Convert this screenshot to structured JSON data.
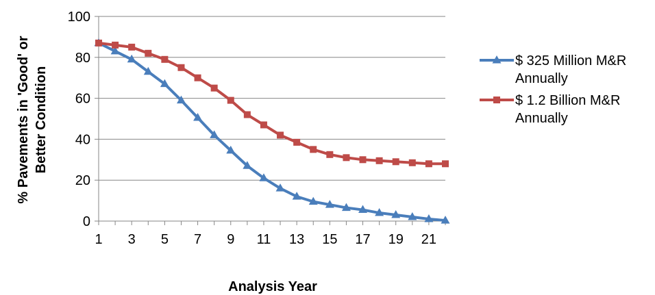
{
  "chart_data": {
    "type": "line",
    "title": "",
    "xlabel": "Analysis Year",
    "ylabel_lines": [
      "% Pavements in 'Good' or",
      "Better Condition"
    ],
    "x": [
      1,
      2,
      3,
      4,
      5,
      6,
      7,
      8,
      9,
      10,
      11,
      12,
      13,
      14,
      15,
      16,
      17,
      18,
      19,
      20,
      21,
      22
    ],
    "x_tick_labels": [
      "1",
      "3",
      "5",
      "7",
      "9",
      "11",
      "13",
      "15",
      "17",
      "19",
      "21"
    ],
    "y_tick_labels": [
      "0",
      "20",
      "40",
      "60",
      "80",
      "100"
    ],
    "ylim": [
      0,
      100
    ],
    "grid": "horizontal",
    "legend_position": "right",
    "series": [
      {
        "name": "$ 325 Million M&R Annually",
        "name_lines": [
          "$ 325 Million M&R",
          "Annually"
        ],
        "color": "#4a7ebb",
        "marker": "triangle",
        "values": [
          87,
          83,
          79,
          73,
          67,
          59,
          50.5,
          42,
          34.5,
          27,
          21,
          16,
          12,
          9.5,
          8,
          6.5,
          5.5,
          4,
          3,
          2,
          1,
          0.3
        ]
      },
      {
        "name": "$ 1.2 Billion M&R Annually",
        "name_lines": [
          "$ 1.2 Billion M&R",
          "Annually"
        ],
        "color": "#be4b48",
        "marker": "square",
        "values": [
          87,
          86,
          85,
          82,
          79,
          75,
          70,
          65,
          59,
          52,
          47,
          42,
          38.5,
          35,
          32.5,
          31,
          30,
          29.5,
          29,
          28.5,
          28,
          28
        ]
      }
    ]
  }
}
